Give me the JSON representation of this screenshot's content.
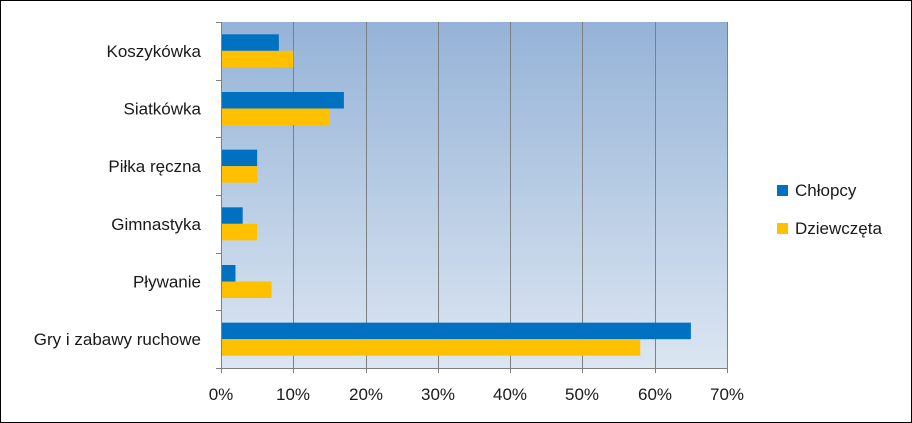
{
  "chart_data": {
    "type": "bar",
    "orientation": "horizontal",
    "categories": [
      "Koszykówka",
      "Siatkówka",
      "Piłka ręczna",
      "Gimnastyka",
      "Pływanie",
      "Gry i zabawy ruchowe"
    ],
    "series": [
      {
        "name": "Chłopcy",
        "color": "#0070c0",
        "values": [
          8,
          17,
          5,
          3,
          2,
          65
        ]
      },
      {
        "name": "Dziewczęta",
        "color": "#ffc000",
        "values": [
          10,
          15,
          5,
          5,
          7,
          58
        ]
      }
    ],
    "x_ticks": [
      "0%",
      "10%",
      "20%",
      "30%",
      "40%",
      "50%",
      "60%",
      "70%"
    ],
    "xlim": [
      0,
      70
    ],
    "unit": "%",
    "grid": true,
    "legend_position": "right",
    "plot_background": {
      "top": "#95b3d7",
      "bottom": "#dce6f2"
    }
  }
}
